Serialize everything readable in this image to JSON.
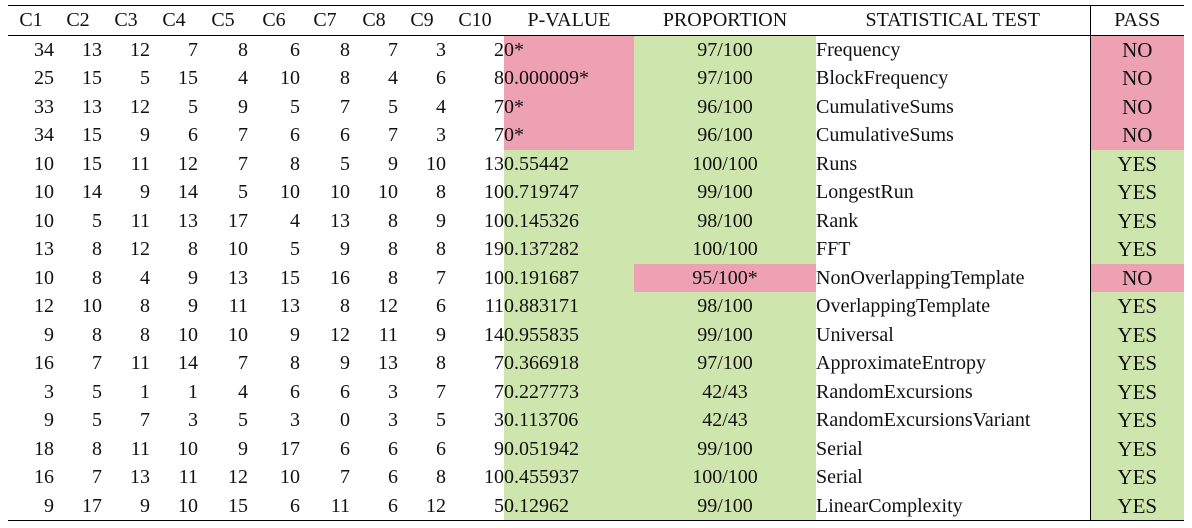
{
  "headers": [
    "C1",
    "C2",
    "C3",
    "C4",
    "C5",
    "C6",
    "C7",
    "C8",
    "C9",
    "C10",
    "P-VALUE",
    "PROPORTION",
    "STATISTICAL TEST",
    "PASS"
  ],
  "colors": {
    "pass": "#cfe5ae",
    "fail": "#eda1b3"
  },
  "rows": [
    {
      "c": [
        "34",
        "13",
        "12",
        "7",
        "8",
        "6",
        "8",
        "7",
        "3",
        "2"
      ],
      "p": "0*",
      "p_fail": true,
      "prop": "97/100",
      "prop_fail": false,
      "test": "Frequency",
      "pass": "NO"
    },
    {
      "c": [
        "25",
        "15",
        "5",
        "15",
        "4",
        "10",
        "8",
        "4",
        "6",
        "8"
      ],
      "p": "0.000009*",
      "p_fail": true,
      "prop": "97/100",
      "prop_fail": false,
      "test": "BlockFrequency",
      "pass": "NO"
    },
    {
      "c": [
        "33",
        "13",
        "12",
        "5",
        "9",
        "5",
        "7",
        "5",
        "4",
        "7"
      ],
      "p": "0*",
      "p_fail": true,
      "prop": "96/100",
      "prop_fail": false,
      "test": "CumulativeSums",
      "pass": "NO"
    },
    {
      "c": [
        "34",
        "15",
        "9",
        "6",
        "7",
        "6",
        "6",
        "7",
        "3",
        "7"
      ],
      "p": "0*",
      "p_fail": true,
      "prop": "96/100",
      "prop_fail": false,
      "test": "CumulativeSums",
      "pass": "NO"
    },
    {
      "c": [
        "10",
        "15",
        "11",
        "12",
        "7",
        "8",
        "5",
        "9",
        "10",
        "13"
      ],
      "p": "0.55442",
      "p_fail": false,
      "prop": "100/100",
      "prop_fail": false,
      "test": "Runs",
      "pass": "YES"
    },
    {
      "c": [
        "10",
        "14",
        "9",
        "14",
        "5",
        "10",
        "10",
        "10",
        "8",
        "10"
      ],
      "p": "0.719747",
      "p_fail": false,
      "prop": "99/100",
      "prop_fail": false,
      "test": "LongestRun",
      "pass": "YES"
    },
    {
      "c": [
        "10",
        "5",
        "11",
        "13",
        "17",
        "4",
        "13",
        "8",
        "9",
        "10"
      ],
      "p": "0.145326",
      "p_fail": false,
      "prop": "98/100",
      "prop_fail": false,
      "test": "Rank",
      "pass": "YES"
    },
    {
      "c": [
        "13",
        "8",
        "12",
        "8",
        "10",
        "5",
        "9",
        "8",
        "8",
        "19"
      ],
      "p": "0.137282",
      "p_fail": false,
      "prop": "100/100",
      "prop_fail": false,
      "test": "FFT",
      "pass": "YES"
    },
    {
      "c": [
        "10",
        "8",
        "4",
        "9",
        "13",
        "15",
        "16",
        "8",
        "7",
        "10"
      ],
      "p": "0.191687",
      "p_fail": false,
      "prop": "95/100*",
      "prop_fail": true,
      "test": "NonOverlappingTemplate",
      "pass": "NO"
    },
    {
      "c": [
        "12",
        "10",
        "8",
        "9",
        "11",
        "13",
        "8",
        "12",
        "6",
        "11"
      ],
      "p": "0.883171",
      "p_fail": false,
      "prop": "98/100",
      "prop_fail": false,
      "test": "OverlappingTemplate",
      "pass": "YES"
    },
    {
      "c": [
        "9",
        "8",
        "8",
        "10",
        "10",
        "9",
        "12",
        "11",
        "9",
        "14"
      ],
      "p": "0.955835",
      "p_fail": false,
      "prop": "99/100",
      "prop_fail": false,
      "test": "Universal",
      "pass": "YES"
    },
    {
      "c": [
        "16",
        "7",
        "11",
        "14",
        "7",
        "8",
        "9",
        "13",
        "8",
        "7"
      ],
      "p": "0.366918",
      "p_fail": false,
      "prop": "97/100",
      "prop_fail": false,
      "test": "ApproximateEntropy",
      "pass": "YES"
    },
    {
      "c": [
        "3",
        "5",
        "1",
        "1",
        "4",
        "6",
        "6",
        "3",
        "7",
        "7"
      ],
      "p": "0.227773",
      "p_fail": false,
      "prop": "42/43",
      "prop_fail": false,
      "test": "RandomExcursions",
      "pass": "YES"
    },
    {
      "c": [
        "9",
        "5",
        "7",
        "3",
        "5",
        "3",
        "0",
        "3",
        "5",
        "3"
      ],
      "p": "0.113706",
      "p_fail": false,
      "prop": "42/43",
      "prop_fail": false,
      "test": "RandomExcursionsVariant",
      "pass": "YES"
    },
    {
      "c": [
        "18",
        "8",
        "11",
        "10",
        "9",
        "17",
        "6",
        "6",
        "6",
        "9"
      ],
      "p": "0.051942",
      "p_fail": false,
      "prop": "99/100",
      "prop_fail": false,
      "test": "Serial",
      "pass": "YES"
    },
    {
      "c": [
        "16",
        "7",
        "13",
        "11",
        "12",
        "10",
        "7",
        "6",
        "8",
        "10"
      ],
      "p": "0.455937",
      "p_fail": false,
      "prop": "100/100",
      "prop_fail": false,
      "test": "Serial",
      "pass": "YES"
    },
    {
      "c": [
        "9",
        "17",
        "9",
        "10",
        "15",
        "6",
        "11",
        "6",
        "12",
        "5"
      ],
      "p": "0.12962",
      "p_fail": false,
      "prop": "99/100",
      "prop_fail": false,
      "test": "LinearComplexity",
      "pass": "YES"
    }
  ]
}
